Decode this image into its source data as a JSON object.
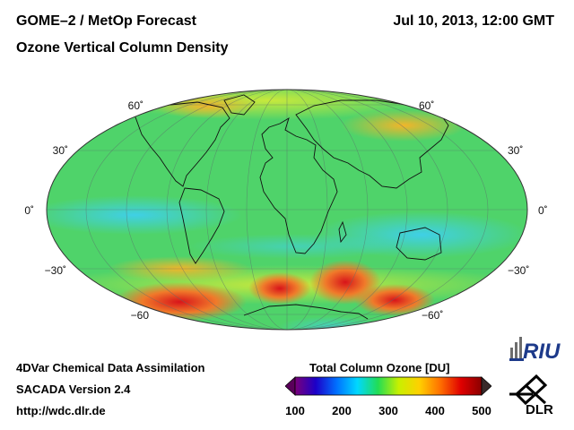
{
  "header": {
    "title_line1": "GOME–2 / MetOp Forecast",
    "title_line2": "Ozone Vertical Column Density",
    "date": "Jul 10, 2013, 12:00 GMT"
  },
  "map": {
    "projection": "Mollweide",
    "latitude_labels_left": [
      "60˚",
      "30˚",
      "0˚",
      "−30˚",
      "−60"
    ],
    "latitude_labels_right": [
      "60˚",
      "30˚",
      "0˚",
      "−30˚",
      "−60˚"
    ],
    "colors": {
      "high": "#e3201f",
      "mid_high": "#f2b52a",
      "mid": "#b7e34a",
      "base": "#4fd36a",
      "low": "#52d0d6"
    }
  },
  "footer": {
    "line1": "4DVar Chemical Data Assimilation",
    "line2": "SACADA Version 2.4",
    "line3": "http://wdc.dlr.de"
  },
  "colorbar": {
    "title": "Total Column Ozone [DU]",
    "min": 100,
    "max": 500,
    "ticks": [
      "100",
      "200",
      "300",
      "400",
      "500"
    ],
    "colors": [
      "#7a007a",
      "#1c00c8",
      "#0070ff",
      "#00d8ff",
      "#22dd55",
      "#c8f000",
      "#ffd000",
      "#ff7000",
      "#e00000",
      "#8a0000"
    ]
  },
  "logos": {
    "riu": "RIU",
    "dlr": "DLR"
  }
}
